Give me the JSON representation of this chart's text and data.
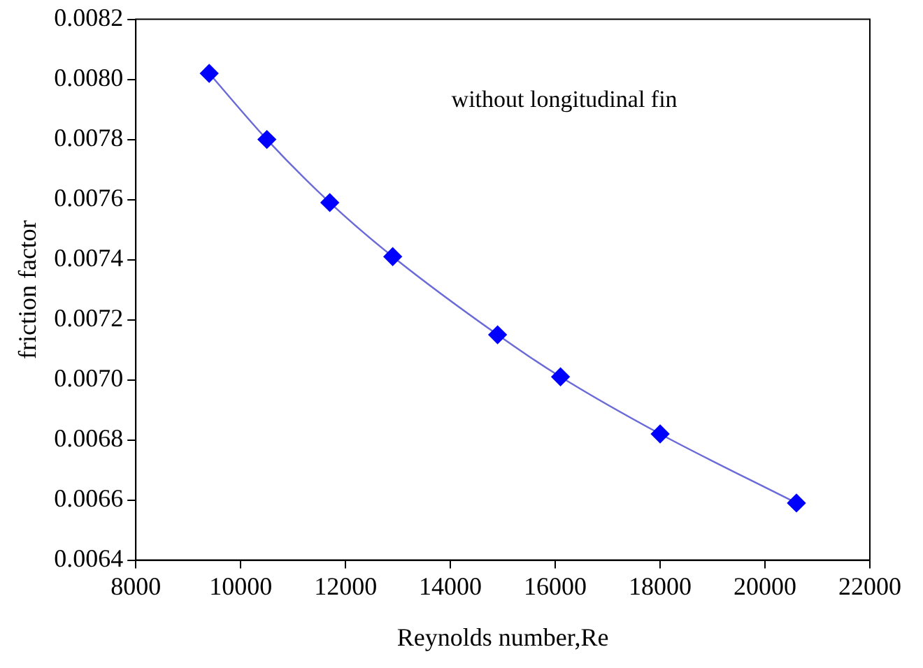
{
  "chart_data": {
    "type": "line",
    "xlabel": "Reynolds number,Re",
    "ylabel": "friction factor",
    "annotations": [
      "without longitudinal fin"
    ],
    "x": [
      9400,
      10500,
      11700,
      12900,
      14900,
      16100,
      18000,
      20600
    ],
    "series": [
      {
        "color": "#0000ff",
        "values": [
          0.00802,
          0.0078,
          0.00759,
          0.00741,
          0.00715,
          0.00701,
          0.00682,
          0.00659
        ]
      }
    ],
    "xlim": [
      8000,
      22000
    ],
    "xticks": [
      8000,
      10000,
      12000,
      14000,
      16000,
      18000,
      20000,
      22000
    ],
    "ylim": [
      0.0064,
      0.0082
    ],
    "yticks": [
      0.0064,
      0.0066,
      0.0068,
      {
        "value": 0.007,
        "label": "0.0070"
      },
      0.0072,
      0.0074,
      0.0076,
      0.0078,
      {
        "value": 0.008,
        "label": "0.0080"
      },
      0.0082
    ],
    "grid": false,
    "legend": false,
    "marker": "diamond",
    "line_style": "solid"
  }
}
